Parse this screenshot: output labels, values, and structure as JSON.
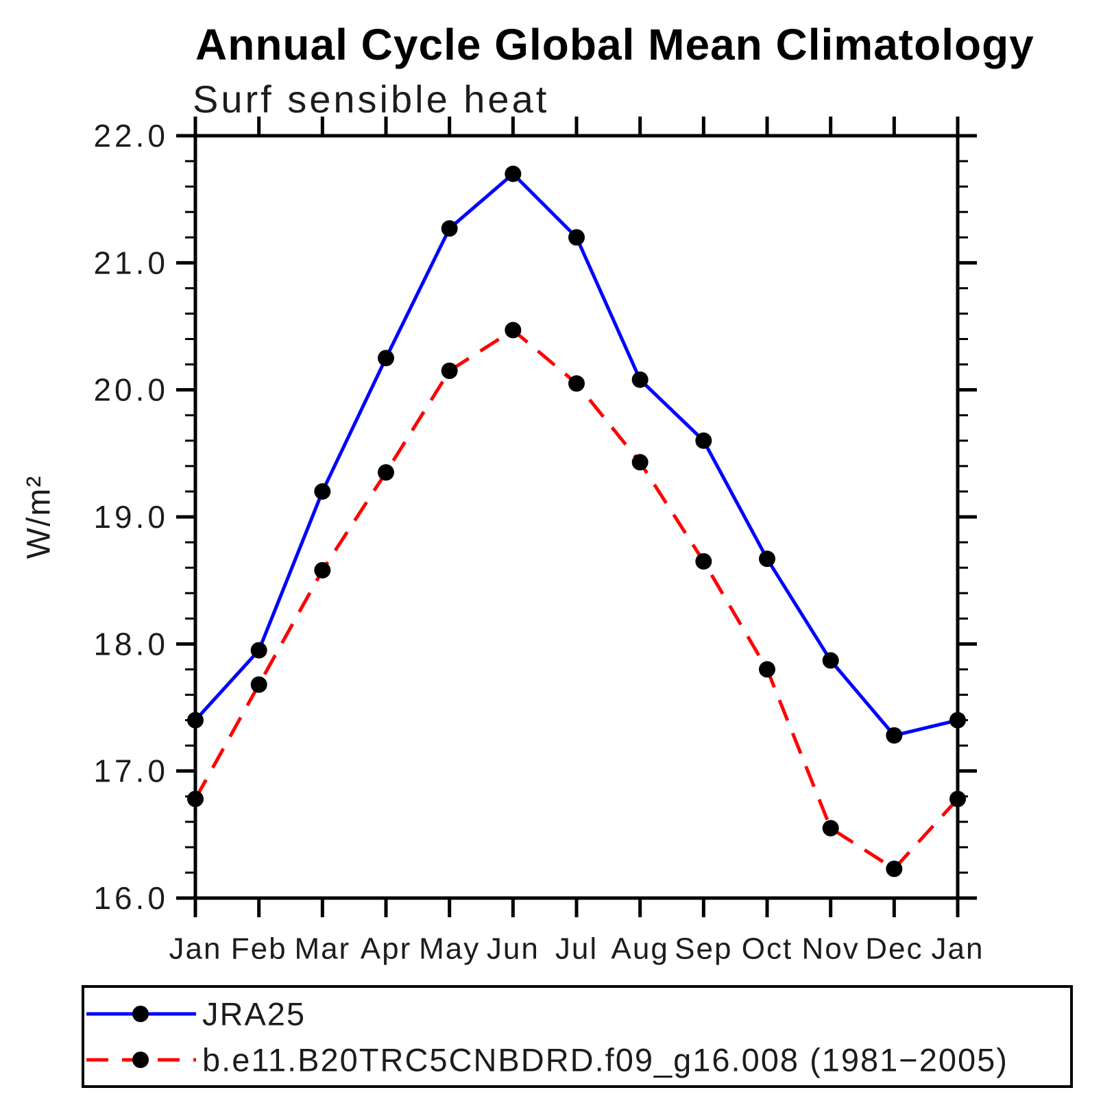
{
  "chart_data": {
    "type": "line",
    "title": "Annual Cycle Global Mean Climatology",
    "subtitle": "Surf sensible heat",
    "xlabel": "",
    "ylabel": "W/m²",
    "categories": [
      "Jan",
      "Feb",
      "Mar",
      "Apr",
      "May",
      "Jun",
      "Jul",
      "Aug",
      "Sep",
      "Oct",
      "Nov",
      "Dec",
      "Jan"
    ],
    "ylim": [
      16.0,
      22.0
    ],
    "ytick_step": 1.0,
    "yminor_step": 0.2,
    "ytick_labels": [
      "16.0",
      "17.0",
      "18.0",
      "19.0",
      "20.0",
      "21.0",
      "22.0"
    ],
    "grid": false,
    "legend_position": "bottom",
    "marker_color": "#000000",
    "axis_color": "#000000",
    "series": [
      {
        "name": "JRA25",
        "color": "#0000ff",
        "style": "solid",
        "marker": "circle",
        "values": [
          17.4,
          17.95,
          19.2,
          20.25,
          21.27,
          21.7,
          21.2,
          20.08,
          19.6,
          18.67,
          17.87,
          17.28,
          17.4
        ]
      },
      {
        "name": "b.e11.B20TRC5CNBDRD.f09_g16.008 (1981−2005)",
        "color": "#ff0000",
        "style": "dashed",
        "marker": "circle",
        "values": [
          16.78,
          17.68,
          18.58,
          19.35,
          20.15,
          20.47,
          20.05,
          19.43,
          18.65,
          17.8,
          16.55,
          16.23,
          16.78
        ]
      }
    ]
  }
}
